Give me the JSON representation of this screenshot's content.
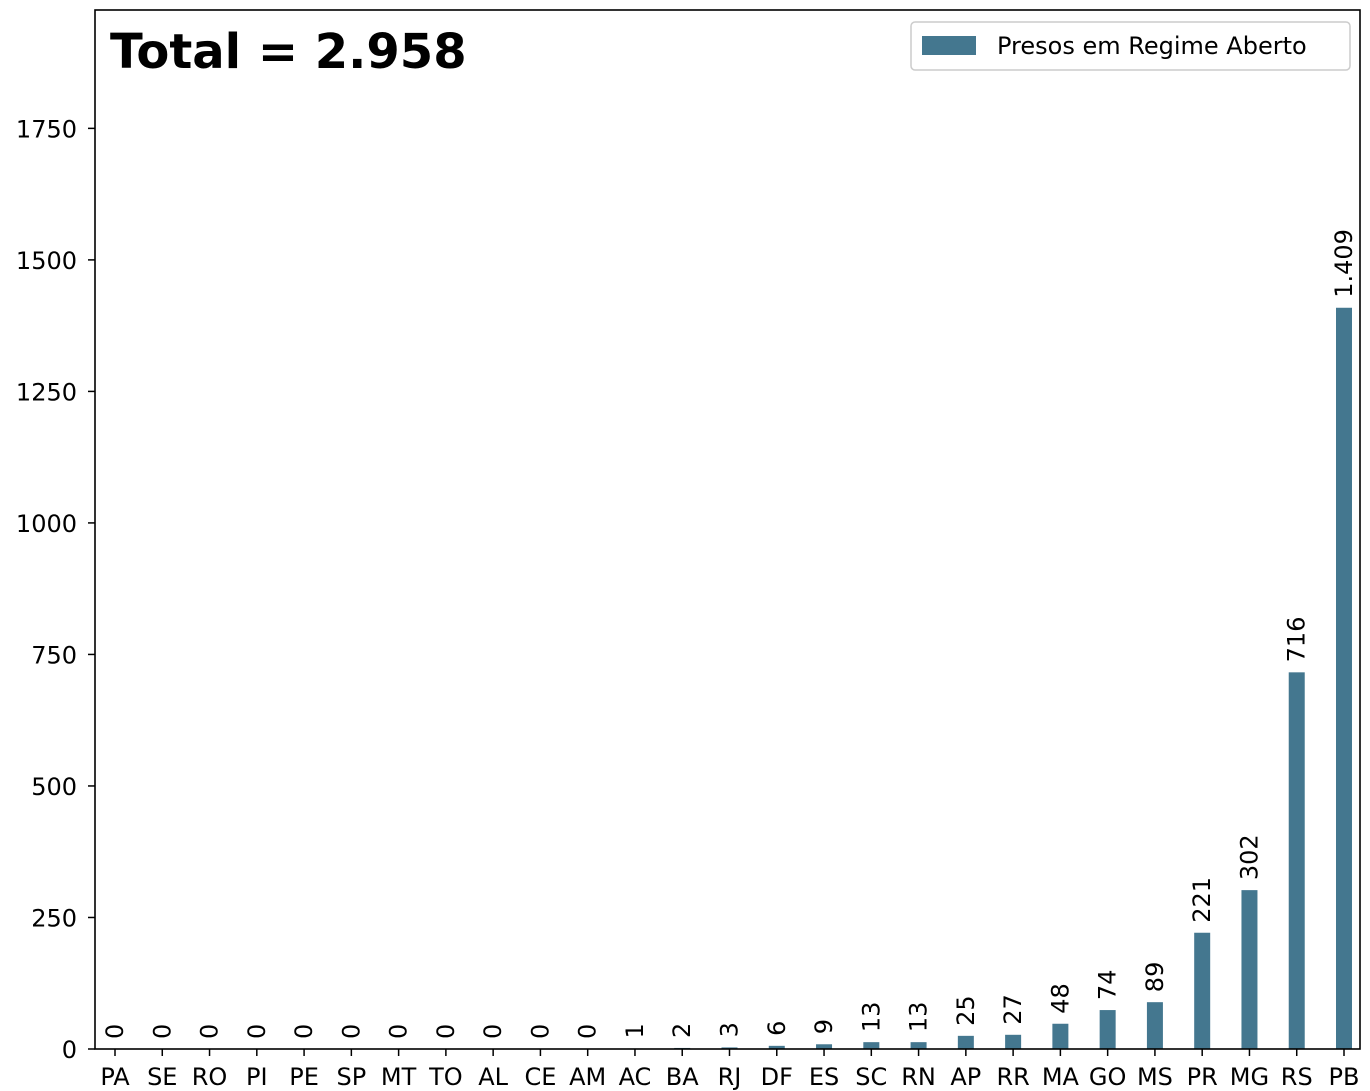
{
  "chart_data": {
    "type": "bar",
    "title": "",
    "annotation": "Total = 2.958",
    "xlabel": "",
    "ylabel": "",
    "categories": [
      "PA",
      "SE",
      "RO",
      "PI",
      "PE",
      "SP",
      "MT",
      "TO",
      "AL",
      "CE",
      "AM",
      "AC",
      "BA",
      "RJ",
      "DF",
      "ES",
      "SC",
      "RN",
      "AP",
      "RR",
      "MA",
      "GO",
      "MS",
      "PR",
      "MG",
      "RS",
      "PB"
    ],
    "series": [
      {
        "name": "Presos em Regime Aberto",
        "color": "#44778f",
        "values": [
          0,
          0,
          0,
          0,
          0,
          0,
          0,
          0,
          0,
          0,
          0,
          1,
          2,
          3,
          6,
          9,
          13,
          13,
          25,
          27,
          48,
          74,
          89,
          221,
          302,
          716,
          1409
        ],
        "labels": [
          "0",
          "0",
          "0",
          "0",
          "0",
          "0",
          "0",
          "0",
          "0",
          "0",
          "0",
          "1",
          "2",
          "3",
          "6",
          "9",
          "13",
          "13",
          "25",
          "27",
          "48",
          "74",
          "89",
          "221",
          "302",
          "716",
          "1.409"
        ]
      }
    ],
    "ylim": [
      0,
      1975
    ],
    "yticks": [
      0,
      250,
      500,
      750,
      1000,
      1250,
      1500,
      1750
    ],
    "ytick_labels": [
      "0",
      "250",
      "500",
      "750",
      "1000",
      "1250",
      "1500",
      "1750"
    ],
    "legend_position": "top-right",
    "grid": false
  }
}
